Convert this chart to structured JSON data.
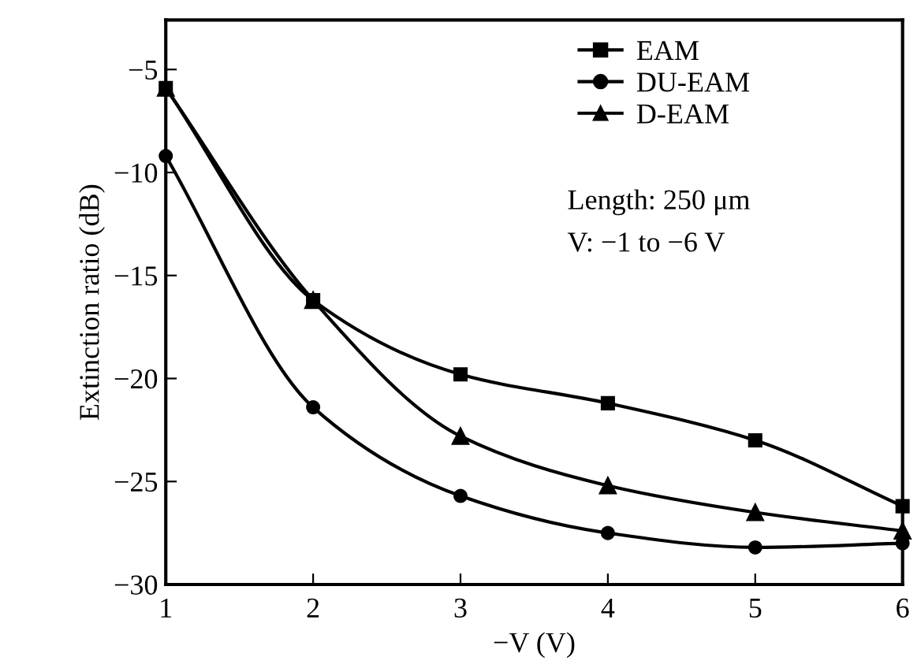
{
  "chart_data": {
    "type": "line",
    "xlabel": "−V (V)",
    "ylabel": "Extinction ratio (dB)",
    "x": [
      1,
      2,
      3,
      4,
      5,
      6
    ],
    "xlim": [
      1,
      6
    ],
    "xticks": [
      1,
      2,
      3,
      4,
      5,
      6
    ],
    "ylim": [
      -30,
      -2.6
    ],
    "yticks": [
      -30,
      -25,
      -20,
      -15,
      -10,
      -5
    ],
    "series": [
      {
        "name": "EAM",
        "color": "#000000",
        "marker": "square",
        "values": [
          -5.9,
          -16.2,
          -19.8,
          -21.2,
          -23.0,
          -26.2
        ]
      },
      {
        "name": "DU-EAM",
        "color": "#000000",
        "marker": "circle",
        "values": [
          -9.2,
          -21.4,
          -25.7,
          -27.5,
          -28.2,
          -28.0
        ]
      },
      {
        "name": "D-EAM",
        "color": "#000000",
        "marker": "triangle",
        "values": [
          -5.9,
          -16.2,
          -22.8,
          -25.2,
          -26.5,
          -27.4
        ]
      }
    ],
    "annotations": [
      "Length: 250 μm",
      "V: −1 to −6 V"
    ],
    "legend": "top right",
    "grid": false,
    "line_style": "solid"
  }
}
